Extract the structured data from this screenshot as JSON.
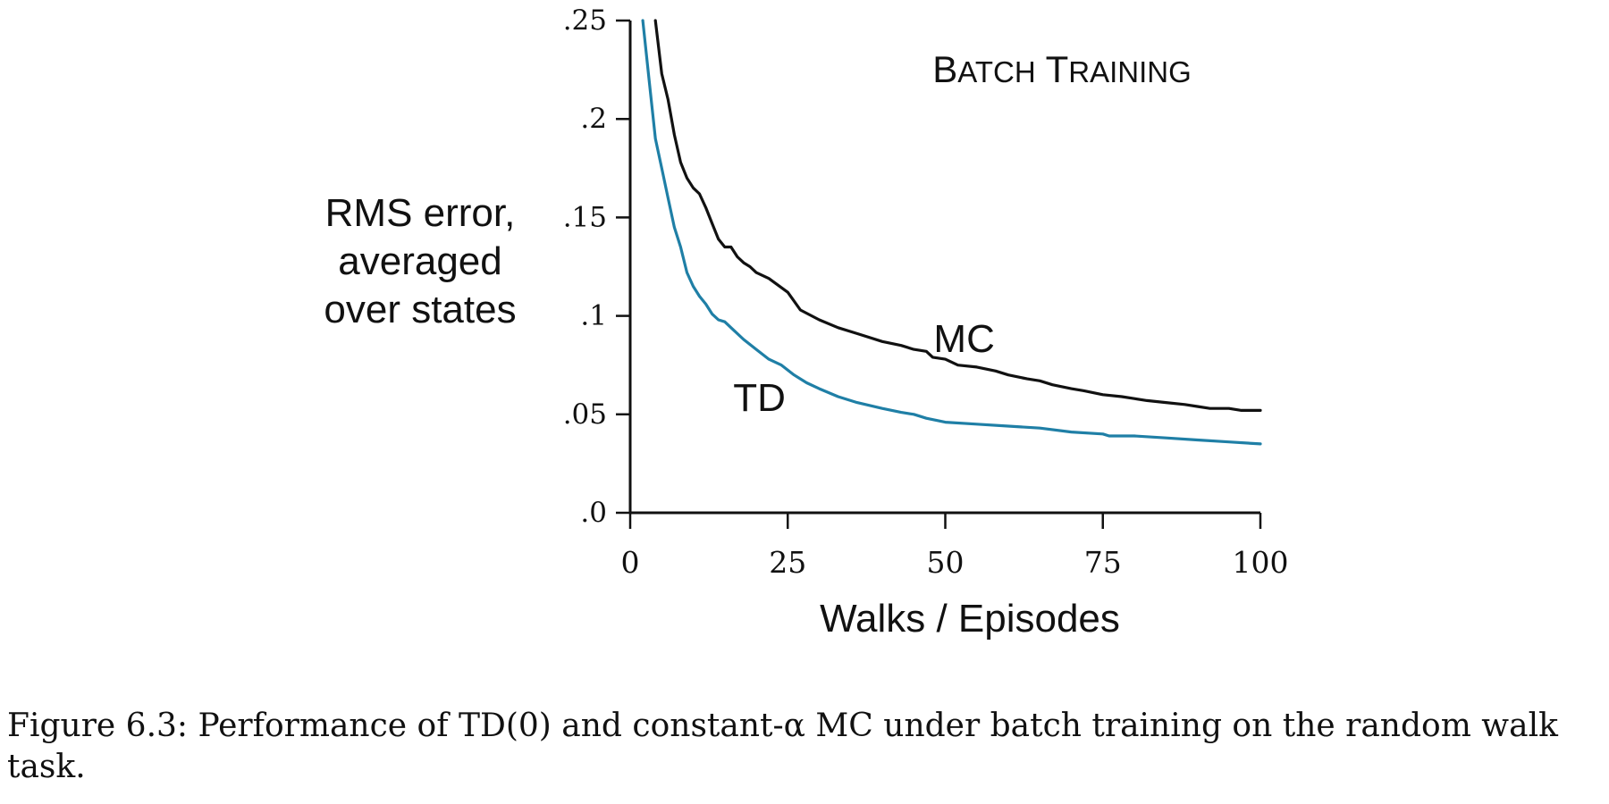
{
  "chart_data": {
    "type": "line",
    "title": "BATCH TRAINING",
    "xlabel": "Walks / Episodes",
    "ylabel": [
      "RMS error,",
      "averaged",
      "over states"
    ],
    "xlim": [
      0,
      100
    ],
    "ylim": [
      0,
      0.25
    ],
    "x_ticks": [
      0,
      25,
      50,
      75,
      100
    ],
    "x_tick_labels": [
      "0",
      "25",
      "50",
      "75",
      "100"
    ],
    "y_ticks": [
      0,
      0.05,
      0.1,
      0.15,
      0.2,
      0.25
    ],
    "y_tick_labels": [
      ".0",
      ".05",
      ".1",
      ".15",
      ".2",
      ".25"
    ],
    "grid": false,
    "series": [
      {
        "name": "MC",
        "color": "#111111",
        "x": [
          4,
          5,
          6,
          7,
          8,
          9,
          10,
          11,
          12,
          13,
          14,
          15,
          16,
          17,
          18,
          19,
          20,
          22,
          25,
          27,
          30,
          33,
          36,
          40,
          43,
          45,
          47,
          48,
          50,
          52,
          55,
          58,
          60,
          63,
          65,
          67,
          70,
          72,
          75,
          78,
          80,
          82,
          85,
          88,
          90,
          92,
          95,
          97,
          100
        ],
        "y": [
          0.25,
          0.223,
          0.21,
          0.192,
          0.178,
          0.17,
          0.165,
          0.162,
          0.155,
          0.147,
          0.139,
          0.135,
          0.135,
          0.13,
          0.127,
          0.125,
          0.122,
          0.119,
          0.112,
          0.103,
          0.098,
          0.094,
          0.091,
          0.087,
          0.085,
          0.083,
          0.082,
          0.079,
          0.078,
          0.075,
          0.074,
          0.072,
          0.07,
          0.068,
          0.067,
          0.065,
          0.063,
          0.062,
          0.06,
          0.059,
          0.058,
          0.057,
          0.056,
          0.055,
          0.054,
          0.053,
          0.053,
          0.052,
          0.052
        ]
      },
      {
        "name": "TD",
        "color": "#1f7fa6",
        "x": [
          2,
          3,
          4,
          5,
          6,
          7,
          8,
          9,
          10,
          11,
          12,
          13,
          14,
          15,
          16,
          18,
          20,
          22,
          24,
          26,
          28,
          30,
          33,
          36,
          40,
          43,
          45,
          47,
          50,
          55,
          60,
          65,
          70,
          75,
          76,
          80,
          85,
          90,
          95,
          100
        ],
        "y": [
          0.25,
          0.22,
          0.19,
          0.175,
          0.16,
          0.145,
          0.135,
          0.122,
          0.115,
          0.11,
          0.106,
          0.101,
          0.098,
          0.097,
          0.094,
          0.088,
          0.083,
          0.078,
          0.075,
          0.07,
          0.066,
          0.063,
          0.059,
          0.056,
          0.053,
          0.051,
          0.05,
          0.048,
          0.046,
          0.045,
          0.044,
          0.043,
          0.041,
          0.04,
          0.039,
          0.039,
          0.038,
          0.037,
          0.036,
          0.035
        ]
      }
    ],
    "annotations": [
      {
        "text": "MC",
        "x": 53,
        "y": 0.089
      },
      {
        "text": "TD",
        "x": 20.5,
        "y": 0.059
      }
    ]
  },
  "caption": "Figure 6.3: Performance of TD(0) and constant-α MC under batch training on the random walk task."
}
